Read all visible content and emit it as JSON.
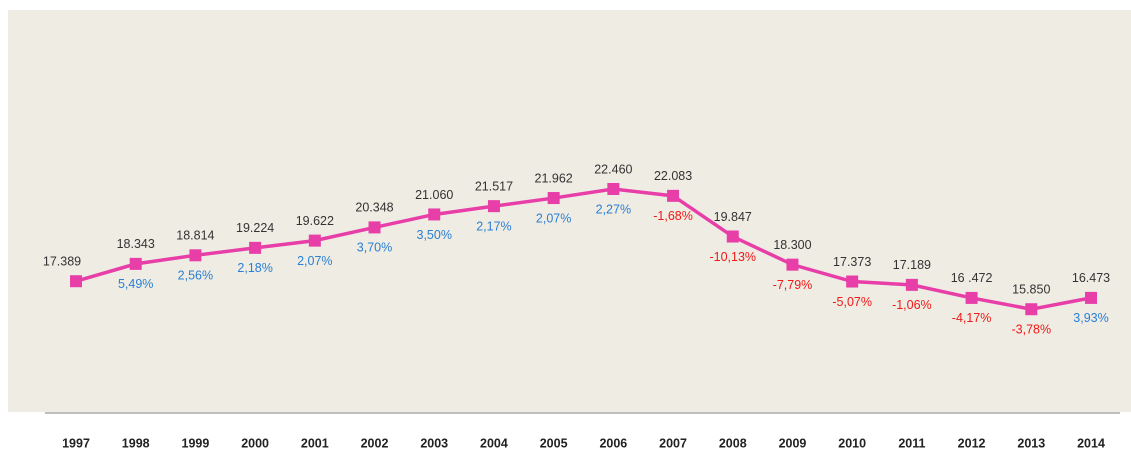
{
  "chart_data": {
    "type": "line",
    "categories": [
      "1997",
      "1998",
      "1999",
      "2000",
      "2001",
      "2002",
      "2003",
      "2004",
      "2005",
      "2006",
      "2007",
      "2008",
      "2009",
      "2010",
      "2011",
      "2012",
      "2013",
      "2014"
    ],
    "values": [
      17389,
      18343,
      18814,
      19224,
      19622,
      20348,
      21060,
      21517,
      21962,
      22460,
      22083,
      19847,
      18300,
      17373,
      17189,
      16472,
      15850,
      16473
    ],
    "value_labels": [
      "17.389",
      "18.343",
      "18.814",
      "19.224",
      "19.622",
      "20.348",
      "21.060",
      "21.517",
      "21.962",
      "22.460",
      "22.083",
      "19.847",
      "18.300",
      "17.373",
      "17.189",
      "16 .472",
      "15.850",
      "16.473"
    ],
    "color": "#e83ea8",
    "changes": {
      "values": [
        null,
        5.49,
        2.56,
        2.18,
        2.07,
        3.7,
        3.5,
        2.17,
        2.07,
        2.27,
        -1.68,
        -10.13,
        -7.79,
        -5.07,
        -1.06,
        -4.17,
        -3.78,
        3.93
      ],
      "value_labels": [
        null,
        "5,49%",
        "2,56%",
        "2,18%",
        "2,07%",
        "3,70%",
        "3,50%",
        "2,17%",
        "2,07%",
        "2,27%",
        "-1,68%",
        "-10,13%",
        "-7,79%",
        "-5,07%",
        "-1,06%",
        "-4,17%",
        "-3,78%",
        "3,93%"
      ],
      "positive_color": "#2a7fd4",
      "negative_color": "#f01818"
    },
    "ylim": [
      10200,
      32300
    ]
  }
}
